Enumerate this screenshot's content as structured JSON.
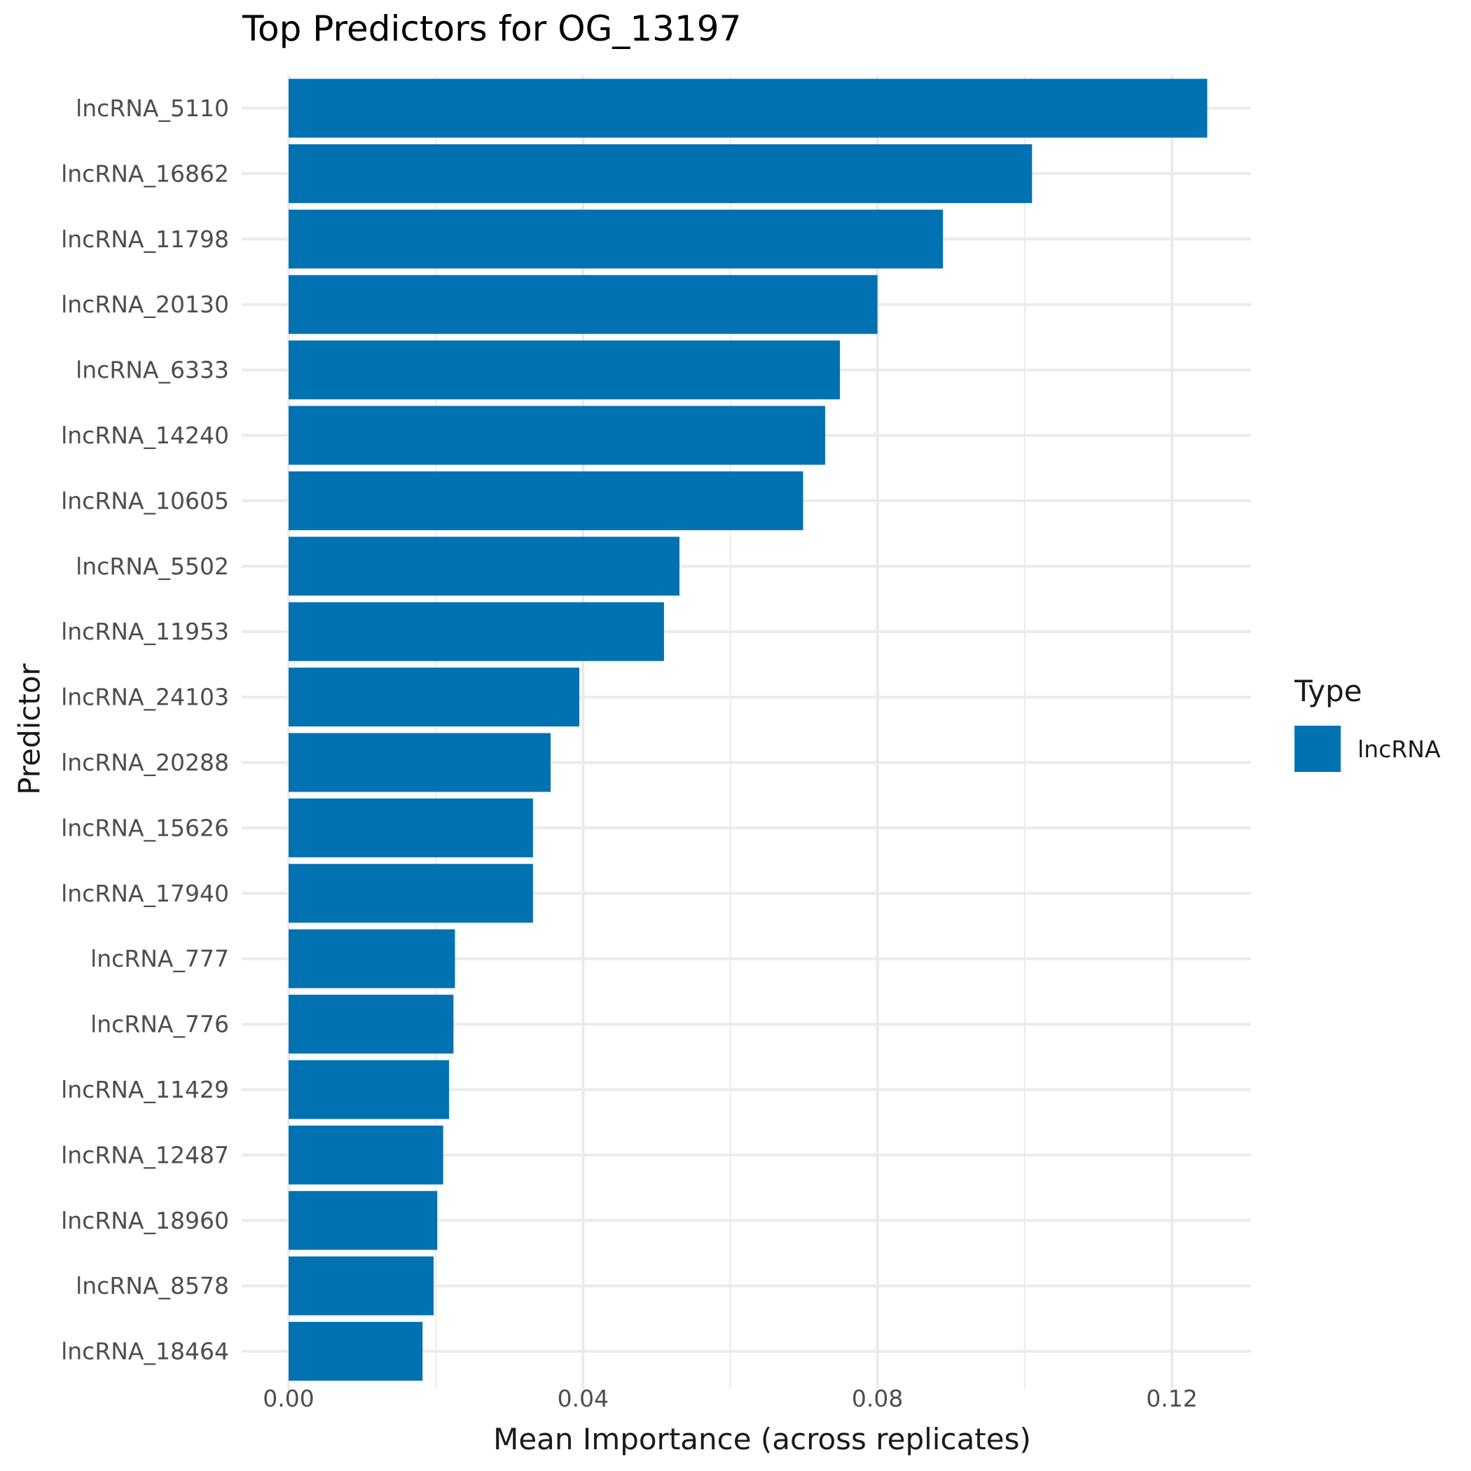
{
  "chart_data": {
    "type": "bar",
    "orientation": "horizontal",
    "title": "Top Predictors for OG_13197",
    "xlabel": "Mean Importance (across replicates)",
    "ylabel": "Predictor",
    "xlim": [
      0,
      0.131
    ],
    "x_ticks": [
      "0.00",
      "0.04",
      "0.08",
      "0.12"
    ],
    "x_tick_values": [
      0,
      0.04,
      0.08,
      0.12
    ],
    "grid": true,
    "legend_title": "Type",
    "legend_placement": "right",
    "categories": [
      "lncRNA_5110",
      "lncRNA_16862",
      "lncRNA_11798",
      "lncRNA_20130",
      "lncRNA_6333",
      "lncRNA_14240",
      "lncRNA_10605",
      "lncRNA_5502",
      "lncRNA_11953",
      "lncRNA_24103",
      "lncRNA_20288",
      "lncRNA_15626",
      "lncRNA_17940",
      "lncRNA_777",
      "lncRNA_776",
      "lncRNA_11429",
      "lncRNA_12487",
      "lncRNA_18960",
      "lncRNA_8578",
      "lncRNA_18464"
    ],
    "series": [
      {
        "name": "lncRNA",
        "color": "#0072B2",
        "values": [
          0.1248,
          0.101,
          0.0889,
          0.08,
          0.0749,
          0.0729,
          0.0699,
          0.0531,
          0.051,
          0.0395,
          0.0356,
          0.0332,
          0.0332,
          0.0226,
          0.0224,
          0.0218,
          0.021,
          0.0202,
          0.0197,
          0.0182
        ]
      }
    ]
  }
}
